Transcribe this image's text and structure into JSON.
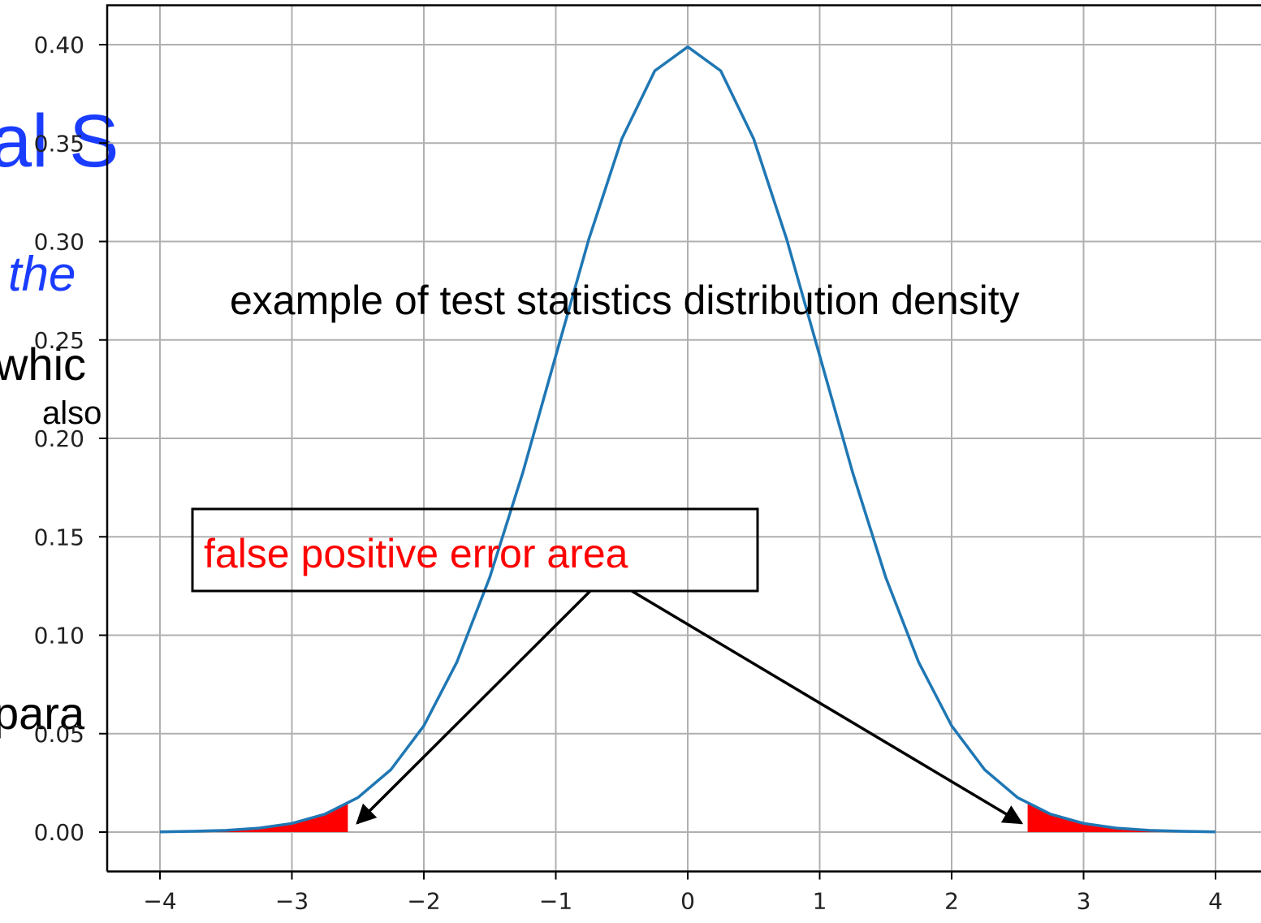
{
  "slide": {
    "fragments": [
      "al S",
      "the",
      "whic",
      "also",
      "para"
    ]
  },
  "chart_data": {
    "type": "line",
    "annotation": "example of test statistics distribution density",
    "callout": "false positive error area",
    "x": [
      -4,
      -3.75,
      -3.5,
      -3.25,
      -3,
      -2.75,
      -2.5,
      -2.25,
      -2,
      -1.75,
      -1.5,
      -1.25,
      -1,
      -0.75,
      -0.5,
      -0.25,
      0,
      0.25,
      0.5,
      0.75,
      1,
      1.25,
      1.5,
      1.75,
      2,
      2.25,
      2.5,
      2.75,
      3,
      3.25,
      3.5,
      3.75,
      4
    ],
    "series": [
      {
        "color": "#1f77b4",
        "values": [
          0.0001,
          0.0004,
          0.0009,
          0.002,
          0.0044,
          0.0091,
          0.0175,
          0.0317,
          0.054,
          0.0863,
          0.1295,
          0.1826,
          0.242,
          0.3011,
          0.3521,
          0.3867,
          0.3989,
          0.3867,
          0.3521,
          0.3011,
          0.242,
          0.1826,
          0.1295,
          0.0863,
          0.054,
          0.0317,
          0.0175,
          0.0091,
          0.0044,
          0.002,
          0.0009,
          0.0004,
          0.0001
        ]
      }
    ],
    "fills": [
      {
        "color": "#ff0000",
        "x": [
          -4,
          -3.5,
          -3,
          -2.75,
          -2.576
        ],
        "values": [
          0.0001,
          0.0009,
          0.0044,
          0.0091,
          0.0145
        ]
      },
      {
        "color": "#ff0000",
        "x": [
          2.576,
          2.75,
          3,
          3.5,
          4
        ],
        "values": [
          0.0145,
          0.0091,
          0.0044,
          0.0009,
          0.0001
        ]
      }
    ],
    "xlim": [
      -4.4,
      4.4
    ],
    "ylim": [
      -0.02,
      0.42
    ],
    "xticks": [
      {
        "value": -4,
        "label": "−4"
      },
      {
        "value": -3,
        "label": "−3"
      },
      {
        "value": -2,
        "label": "−2"
      },
      {
        "value": -1,
        "label": "−1"
      },
      0,
      1,
      2,
      3,
      4
    ],
    "yticks": [
      {
        "value": 0,
        "label": "0.00"
      },
      {
        "value": 0.05,
        "label": "0.05"
      },
      {
        "value": 0.1,
        "label": "0.10"
      },
      {
        "value": 0.15,
        "label": "0.15"
      },
      {
        "value": 0.2,
        "label": "0.20"
      },
      {
        "value": 0.25,
        "label": "0.25"
      },
      {
        "value": 0.3,
        "label": "0.30"
      },
      {
        "value": 0.35,
        "label": "0.35"
      },
      {
        "value": 0.4,
        "label": "0.40"
      }
    ],
    "grid": true
  }
}
